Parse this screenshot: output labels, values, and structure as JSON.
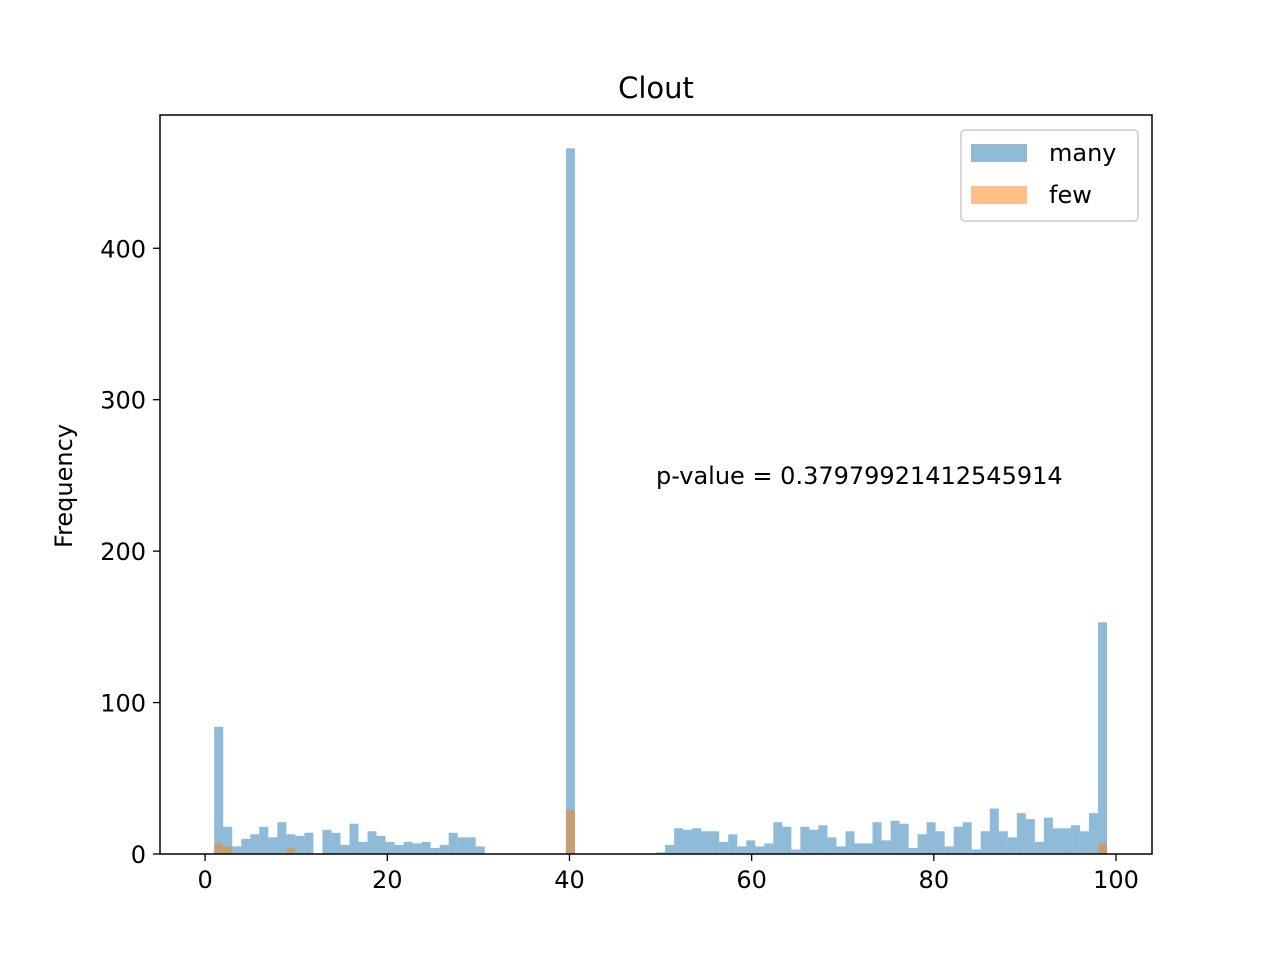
{
  "chart_data": {
    "type": "bar",
    "title": "Clout",
    "xlabel": "",
    "ylabel": "Frequency",
    "xlim": [
      -4.95,
      103.95
    ],
    "ylim": [
      0,
      488
    ],
    "xticks": [
      0,
      20,
      40,
      60,
      80,
      100
    ],
    "yticks": [
      0,
      100,
      200,
      300,
      400
    ],
    "bin_width": 0.99,
    "bin_start": 1.0,
    "grid": false,
    "legend_position": "top-right",
    "annotation": "p-value = 0.37979921412545914",
    "series": [
      {
        "name": "many",
        "color": "#1f77b4",
        "opacity": 0.5,
        "values": [
          84,
          18,
          5,
          10,
          13,
          18,
          11,
          21,
          13,
          12,
          14,
          0,
          16,
          14,
          6,
          20,
          8,
          15,
          12,
          8,
          6,
          8,
          7,
          8,
          4,
          6,
          14,
          11,
          11,
          5,
          0,
          0,
          0,
          0,
          0,
          0,
          0,
          0,
          0,
          466,
          0,
          0,
          0,
          0,
          0,
          0,
          0,
          0,
          0,
          1,
          6,
          17,
          16,
          17,
          15,
          15,
          8,
          13,
          5,
          9,
          5,
          7,
          21,
          18,
          3,
          18,
          16,
          19,
          11,
          5,
          15,
          7,
          7,
          21,
          9,
          22,
          20,
          4,
          13,
          21,
          15,
          5,
          18,
          21,
          3,
          15,
          30,
          15,
          11,
          27,
          23,
          8,
          24,
          17,
          17,
          19,
          15,
          27,
          153
        ]
      },
      {
        "name": "few",
        "color": "#ff7f0e",
        "opacity": 0.5,
        "values": [
          7,
          5,
          0,
          0,
          0,
          0,
          0,
          0,
          4,
          0,
          0,
          0,
          0,
          0,
          0,
          0,
          0,
          0,
          0,
          0,
          0,
          0,
          0,
          0,
          0,
          0,
          0,
          0,
          0,
          0,
          0,
          0,
          0,
          0,
          0,
          0,
          0,
          0,
          0,
          29,
          0,
          0,
          0,
          0,
          0,
          0,
          0,
          0,
          0,
          0,
          0,
          0,
          0,
          0,
          0,
          0,
          0,
          0,
          0,
          0,
          0,
          0,
          0,
          0,
          0,
          0,
          0,
          0,
          0,
          0,
          0,
          0,
          0,
          0,
          0,
          0,
          0,
          0,
          0,
          0,
          0,
          0,
          0,
          0,
          0,
          0,
          0,
          0,
          0,
          0,
          0,
          0,
          0,
          0,
          1,
          0,
          0,
          0,
          7
        ]
      }
    ]
  }
}
